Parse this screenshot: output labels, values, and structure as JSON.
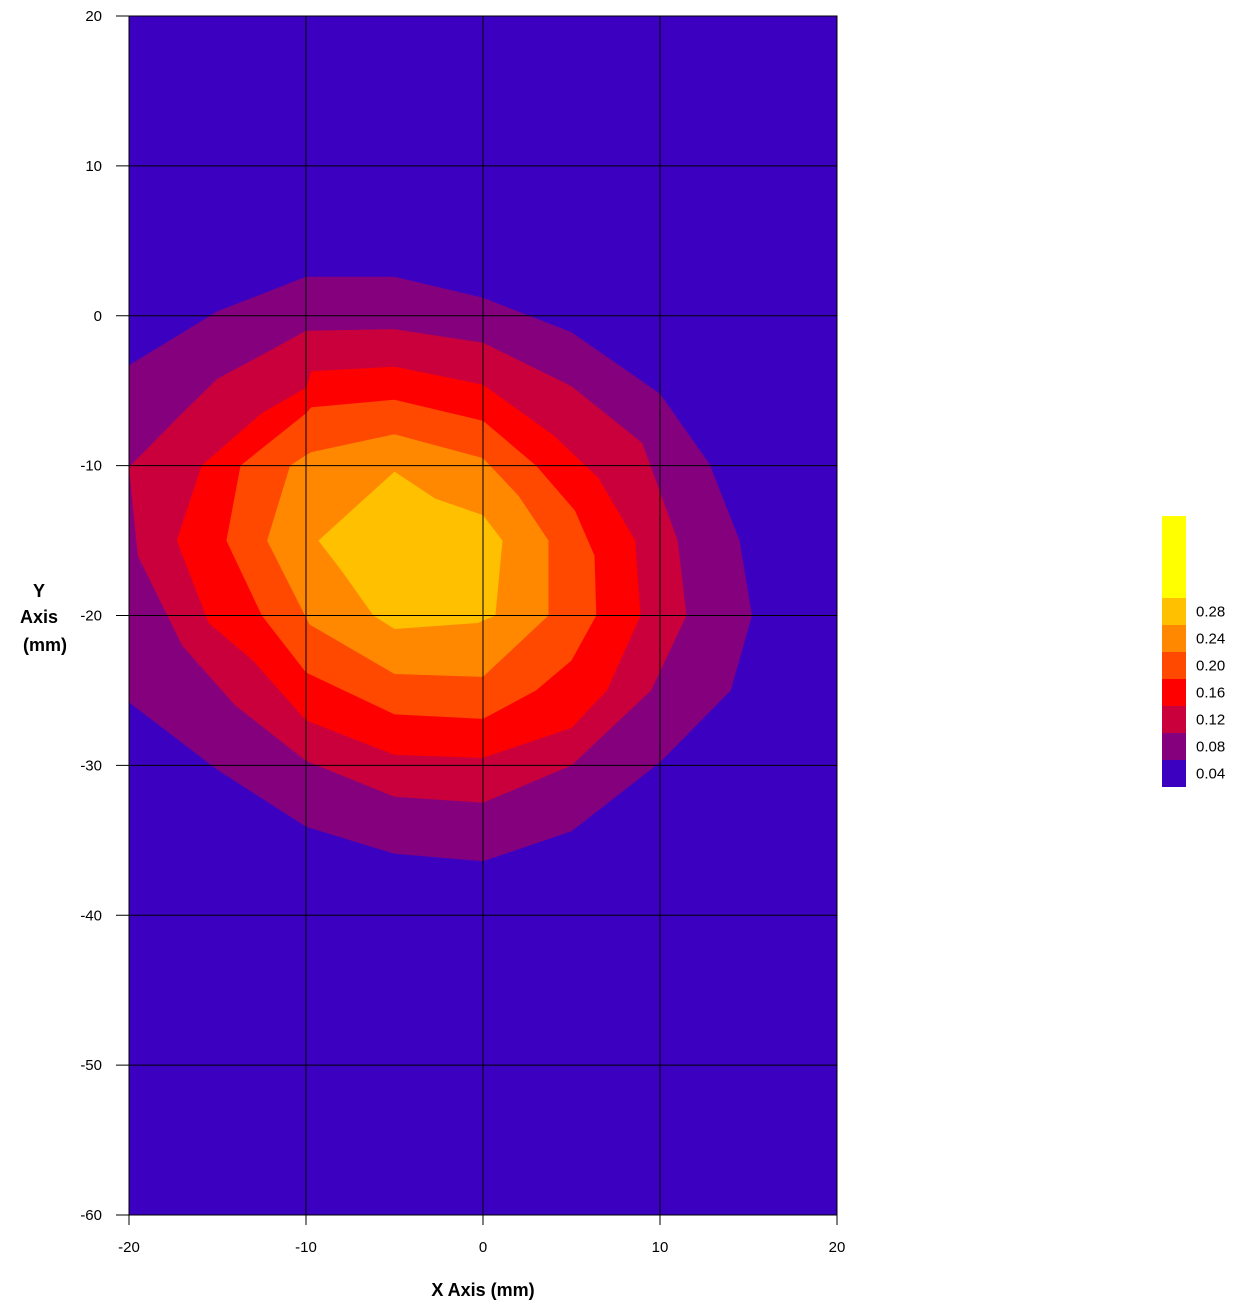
{
  "chart_data": {
    "type": "contour",
    "xlabel": "X Axis (mm)",
    "ylabel_lines": [
      "Y",
      "Axis",
      "(mm)"
    ],
    "xlim": [
      -20,
      20
    ],
    "ylim": [
      -60,
      20
    ],
    "x_ticks": [
      -20,
      -10,
      0,
      10,
      20
    ],
    "y_ticks": [
      20,
      10,
      0,
      -10,
      -20,
      -30,
      -40,
      -50,
      -60
    ],
    "x_tick_labels": [
      "-20",
      "-10",
      "0",
      "10",
      "20"
    ],
    "y_tick_labels": [
      "20",
      "10",
      "0",
      "-10",
      "-20",
      "-30",
      "-40",
      "-50",
      "-60"
    ],
    "grid": true,
    "legend": {
      "position": "right",
      "levels": [
        {
          "label": "0.04",
          "color": "#3b00c0"
        },
        {
          "label": "0.08",
          "color": "#85007d"
        },
        {
          "label": "0.12",
          "color": "#c9003c"
        },
        {
          "label": "0.16",
          "color": "#ff0000"
        },
        {
          "label": "0.20",
          "color": "#ff4800"
        },
        {
          "label": "0.24",
          "color": "#ff8800"
        },
        {
          "label": "0.28",
          "color": "#ffc000"
        },
        {
          "label": "",
          "color": "#ffff00"
        }
      ]
    },
    "background_color": "#3b00c0",
    "contours": [
      {
        "level": 0.04,
        "color": "#85007d",
        "points": [
          [
            -20,
            -3.3
          ],
          [
            -15,
            0.3
          ],
          [
            -10,
            2.6
          ],
          [
            -5,
            2.6
          ],
          [
            0,
            1.2
          ],
          [
            5,
            -1.1
          ],
          [
            10,
            -5.2
          ],
          [
            12.8,
            -9.9
          ],
          [
            14.5,
            -15
          ],
          [
            15.2,
            -20
          ],
          [
            14,
            -25
          ],
          [
            10,
            -29.8
          ],
          [
            5,
            -34.4
          ],
          [
            0,
            -36.4
          ],
          [
            -5,
            -35.9
          ],
          [
            -10,
            -34.1
          ],
          [
            -15,
            -30.3
          ],
          [
            -20,
            -25.8
          ]
        ]
      },
      {
        "level": 0.08,
        "color": "#c9003c",
        "points": [
          [
            -20,
            -10.1
          ],
          [
            -17,
            -6.5
          ],
          [
            -15,
            -4.2
          ],
          [
            -12,
            -2.3
          ],
          [
            -10,
            -1
          ],
          [
            -5,
            -0.9
          ],
          [
            0,
            -1.8
          ],
          [
            5,
            -4.7
          ],
          [
            9,
            -8.5
          ],
          [
            11,
            -15
          ],
          [
            11.5,
            -20
          ],
          [
            9.5,
            -25
          ],
          [
            5,
            -30
          ],
          [
            0,
            -32.5
          ],
          [
            -5,
            -32.1
          ],
          [
            -10,
            -29.7
          ],
          [
            -14,
            -26
          ],
          [
            -17,
            -22
          ],
          [
            -19.5,
            -16
          ]
        ]
      },
      {
        "level": 0.12,
        "color": "#ff0000",
        "points": [
          [
            -17.3,
            -15
          ],
          [
            -15.9,
            -10
          ],
          [
            -12.5,
            -6.5
          ],
          [
            -10,
            -4.8
          ],
          [
            -9.7,
            -3.7
          ],
          [
            -5,
            -3.4
          ],
          [
            0,
            -4.6
          ],
          [
            4,
            -8
          ],
          [
            6.5,
            -10.8
          ],
          [
            8.6,
            -15
          ],
          [
            8.9,
            -20
          ],
          [
            7,
            -25
          ],
          [
            5,
            -27.5
          ],
          [
            0,
            -29.5
          ],
          [
            -5,
            -29.3
          ],
          [
            -10,
            -27
          ],
          [
            -13,
            -23
          ],
          [
            -15.5,
            -20.5
          ]
        ]
      },
      {
        "level": 0.16,
        "color": "#ff4800",
        "points": [
          [
            -14.5,
            -15
          ],
          [
            -13.7,
            -10
          ],
          [
            -10,
            -6.5
          ],
          [
            -9.7,
            -6.1
          ],
          [
            -5,
            -5.6
          ],
          [
            0,
            -7
          ],
          [
            3,
            -10
          ],
          [
            5.2,
            -13
          ],
          [
            6.3,
            -16
          ],
          [
            6.4,
            -20
          ],
          [
            5,
            -23
          ],
          [
            3,
            -25
          ],
          [
            0,
            -26.9
          ],
          [
            -5,
            -26.6
          ],
          [
            -10,
            -23.8
          ],
          [
            -12.5,
            -20
          ]
        ]
      },
      {
        "level": 0.2,
        "color": "#ff8800",
        "points": [
          [
            -12.2,
            -15
          ],
          [
            -10.9,
            -10
          ],
          [
            -10,
            -9.3
          ],
          [
            -9.7,
            -9.1
          ],
          [
            -5,
            -7.9
          ],
          [
            0,
            -9.5
          ],
          [
            2,
            -12
          ],
          [
            3.7,
            -15
          ],
          [
            3.7,
            -20
          ],
          [
            0,
            -24.1
          ],
          [
            -5,
            -23.9
          ],
          [
            -9.8,
            -20.6
          ]
        ]
      },
      {
        "level": 0.24,
        "color": "#ffc000",
        "points": [
          [
            -9.3,
            -15
          ],
          [
            -5,
            -10.4
          ],
          [
            -2.7,
            -12.2
          ],
          [
            0,
            -13.3
          ],
          [
            1.1,
            -15
          ],
          [
            0.7,
            -20
          ],
          [
            -0.3,
            -20.5
          ],
          [
            -5,
            -20.9
          ],
          [
            -6.2,
            -20
          ],
          [
            -8,
            -17
          ]
        ]
      }
    ]
  }
}
